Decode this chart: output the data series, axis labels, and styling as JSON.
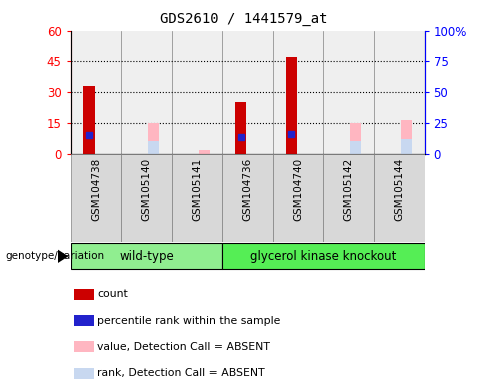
{
  "title": "GDS2610 / 1441579_at",
  "samples": [
    "GSM104738",
    "GSM105140",
    "GSM105141",
    "GSM104736",
    "GSM104740",
    "GSM105142",
    "GSM105144"
  ],
  "count_values": [
    33,
    0,
    0,
    25,
    47,
    0,
    0
  ],
  "percentile_rank_values": [
    15,
    0,
    0,
    13.5,
    16,
    0,
    0
  ],
  "absent_value_values": [
    0,
    25,
    3,
    0,
    0,
    25,
    27
  ],
  "absent_rank_values": [
    0,
    10.5,
    0,
    0,
    0,
    10.5,
    11.5
  ],
  "count_color": "#CC0000",
  "percentile_rank_color": "#2222CC",
  "absent_value_color": "#FFB6C1",
  "absent_rank_color": "#C8D8F0",
  "ylim_left": [
    0,
    60
  ],
  "ylim_right": [
    0,
    100
  ],
  "yticks_left": [
    0,
    15,
    30,
    45,
    60
  ],
  "yticks_right": [
    0,
    25,
    50,
    75,
    100
  ],
  "ytick_labels_right": [
    "0",
    "25",
    "50",
    "75",
    "100%"
  ],
  "wt_group": {
    "label": "wild-type",
    "color": "#90EE90",
    "indices": [
      0,
      1,
      2
    ]
  },
  "gk_group": {
    "label": "glycerol kinase knockout",
    "color": "#55EE55",
    "indices": [
      3,
      4,
      5,
      6
    ]
  },
  "genotype_label": "genotype/variation",
  "legend_items": [
    {
      "label": "count",
      "color": "#CC0000"
    },
    {
      "label": "percentile rank within the sample",
      "color": "#2222CC"
    },
    {
      "label": "value, Detection Call = ABSENT",
      "color": "#FFB6C1"
    },
    {
      "label": "rank, Detection Call = ABSENT",
      "color": "#C8D8F0"
    }
  ]
}
